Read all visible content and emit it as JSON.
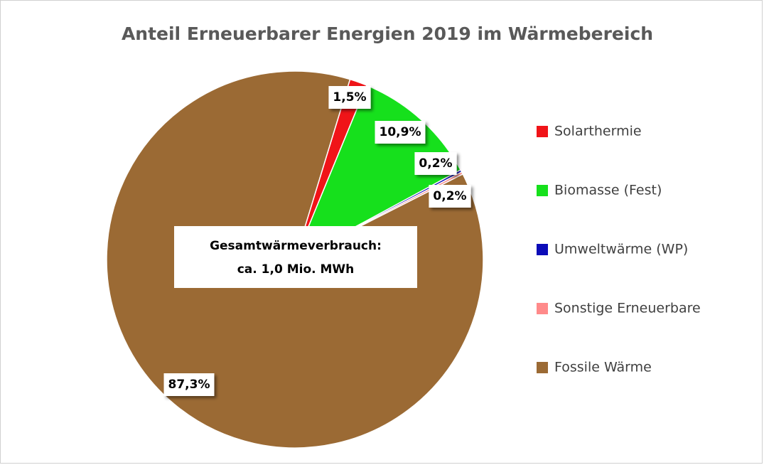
{
  "chart_data": {
    "type": "pie",
    "title": "Anteil Erneuerbarer  Energien 2019 im Wärmebereich",
    "categories": [
      "Solarthermie",
      "Biomasse (Fest)",
      "Umweltwärme (WP)",
      "Sonstige Erneuerbare",
      "Fossile Wärme"
    ],
    "values": [
      1.5,
      10.9,
      0.2,
      0.2,
      87.3
    ],
    "value_labels": [
      "1,5%",
      "10,9%",
      "0,2%",
      "0,2%",
      "87,3%"
    ],
    "colors": [
      "#f01418",
      "#16e01c",
      "#0c0cb8",
      "#ff8a8a",
      "#9b6a34"
    ],
    "annotation": [
      "Gesamtwärmeverbrauch:",
      "ca. 1,0 Mio. MWh"
    ],
    "legend": "right"
  }
}
